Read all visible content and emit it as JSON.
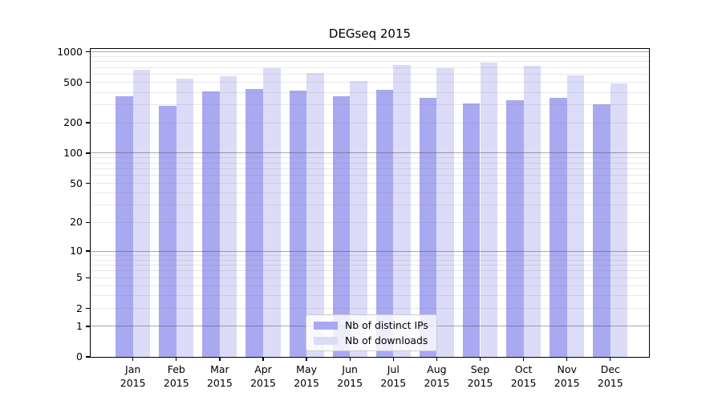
{
  "chart_data": {
    "type": "bar",
    "title": "DEGseq 2015",
    "categories": [
      "Jan 2015",
      "Feb 2015",
      "Mar 2015",
      "Apr 2015",
      "May 2015",
      "Jun 2015",
      "Jul 2015",
      "Aug 2015",
      "Sep 2015",
      "Oct 2015",
      "Nov 2015",
      "Dec 2015"
    ],
    "months": [
      "Jan",
      "Feb",
      "Mar",
      "Apr",
      "May",
      "Jun",
      "Jul",
      "Aug",
      "Sep",
      "Oct",
      "Nov",
      "Dec"
    ],
    "year": "2015",
    "series": [
      {
        "name": "Nb of distinct IPs",
        "color": "#a9a9f1",
        "values": [
          366,
          292,
          406,
          433,
          418,
          366,
          421,
          355,
          310,
          334,
          351,
          306
        ]
      },
      {
        "name": "Nb of downloads",
        "color": "#dcdcf8",
        "values": [
          663,
          549,
          580,
          691,
          623,
          520,
          744,
          696,
          785,
          730,
          587,
          491
        ]
      }
    ],
    "yscale": "log1p",
    "ylim": [
      0,
      1000
    ],
    "yticks": [
      1000,
      500,
      200,
      100,
      50,
      20,
      10,
      5,
      2,
      1,
      0
    ],
    "ytick_labels": [
      "1000",
      "500",
      "200",
      "100",
      "50",
      "20",
      "10",
      "5",
      "2",
      "1",
      "0"
    ],
    "grid": true,
    "legend_position": "lower center"
  },
  "legend": {
    "items": [
      {
        "label": "Nb of distinct IPs",
        "color": "#a9a9f1"
      },
      {
        "label": "Nb of downloads",
        "color": "#dcdcf8"
      }
    ]
  },
  "colors": {
    "background": "#ffffff",
    "bar_ips": "#a9a9f1",
    "bar_downloads": "#dcdcf8",
    "grid_major": "rgba(64,64,64,0.45)",
    "grid_minor": "rgba(128,128,128,0.18)",
    "spine": "#000000",
    "text": "#000000"
  }
}
